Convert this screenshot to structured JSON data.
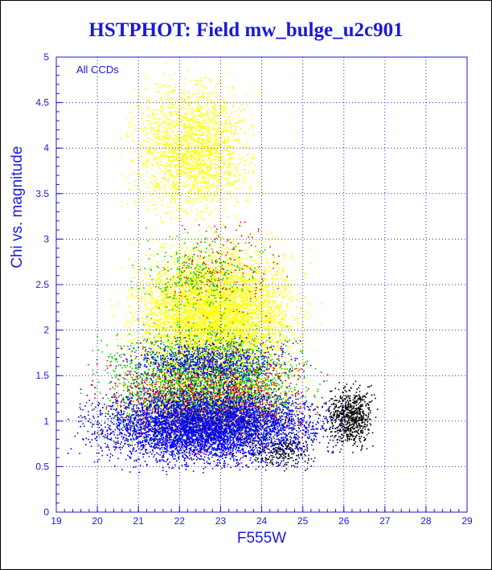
{
  "chart_data": {
    "type": "scatter",
    "title": "HSTPHOT: Field mw_bulge_u2c901",
    "xlabel": "F555W",
    "ylabel": "Chi vs. magnitude",
    "annotation": "All CCDs",
    "xlim": [
      19,
      29
    ],
    "ylim": [
      0,
      5
    ],
    "xticks": [
      "19",
      "20",
      "21",
      "22",
      "23",
      "24",
      "25",
      "26",
      "27",
      "28",
      "29"
    ],
    "yticks": [
      "0",
      "0.5",
      "1",
      "1.5",
      "2",
      "2.5",
      "3",
      "3.5",
      "4",
      "4.5",
      "5"
    ],
    "grid": true,
    "legend": "none",
    "series": [
      {
        "color": "#ffff00",
        "clusters": [
          {
            "x_range": [
              20.2,
              25.5
            ],
            "y_range": [
              1.2,
              3.2
            ],
            "count": 6000
          },
          {
            "x_range": [
              20.4,
              24.2
            ],
            "y_range": [
              3.0,
              5.0
            ],
            "count": 2200
          },
          {
            "x_range": [
              19.8,
              25.8
            ],
            "y_range": [
              0.6,
              1.8
            ],
            "count": 1600
          }
        ]
      },
      {
        "color": "#00cc00",
        "clusters": [
          {
            "x_range": [
              19.5,
              25.8
            ],
            "y_range": [
              0.6,
              2.2
            ],
            "count": 2600
          },
          {
            "x_range": [
              20.5,
              24.5
            ],
            "y_range": [
              2.0,
              3.2
            ],
            "count": 300
          }
        ]
      },
      {
        "color": "#ff0000",
        "clusters": [
          {
            "x_range": [
              19.2,
              26.0
            ],
            "y_range": [
              0.5,
              2.0
            ],
            "count": 1300
          },
          {
            "x_range": [
              21.0,
              25.0
            ],
            "y_range": [
              2.0,
              3.5
            ],
            "count": 150
          }
        ]
      },
      {
        "color": "#0000ee",
        "clusters": [
          {
            "x_range": [
              19.0,
              26.3
            ],
            "y_range": [
              0.4,
              1.5
            ],
            "count": 5500
          },
          {
            "x_range": [
              20.0,
              25.5
            ],
            "y_range": [
              1.3,
              2.0
            ],
            "count": 800
          }
        ]
      },
      {
        "color": "#000000",
        "clusters": [
          {
            "x_range": [
              25.4,
              26.9
            ],
            "y_range": [
              0.6,
              1.5
            ],
            "count": 700
          },
          {
            "x_range": [
              23.5,
              25.5
            ],
            "y_range": [
              0.4,
              0.9
            ],
            "count": 200
          }
        ]
      }
    ]
  },
  "colors": {
    "axis": "#1a1ad8",
    "grid": "#2222cc",
    "background": "#ffffff"
  }
}
